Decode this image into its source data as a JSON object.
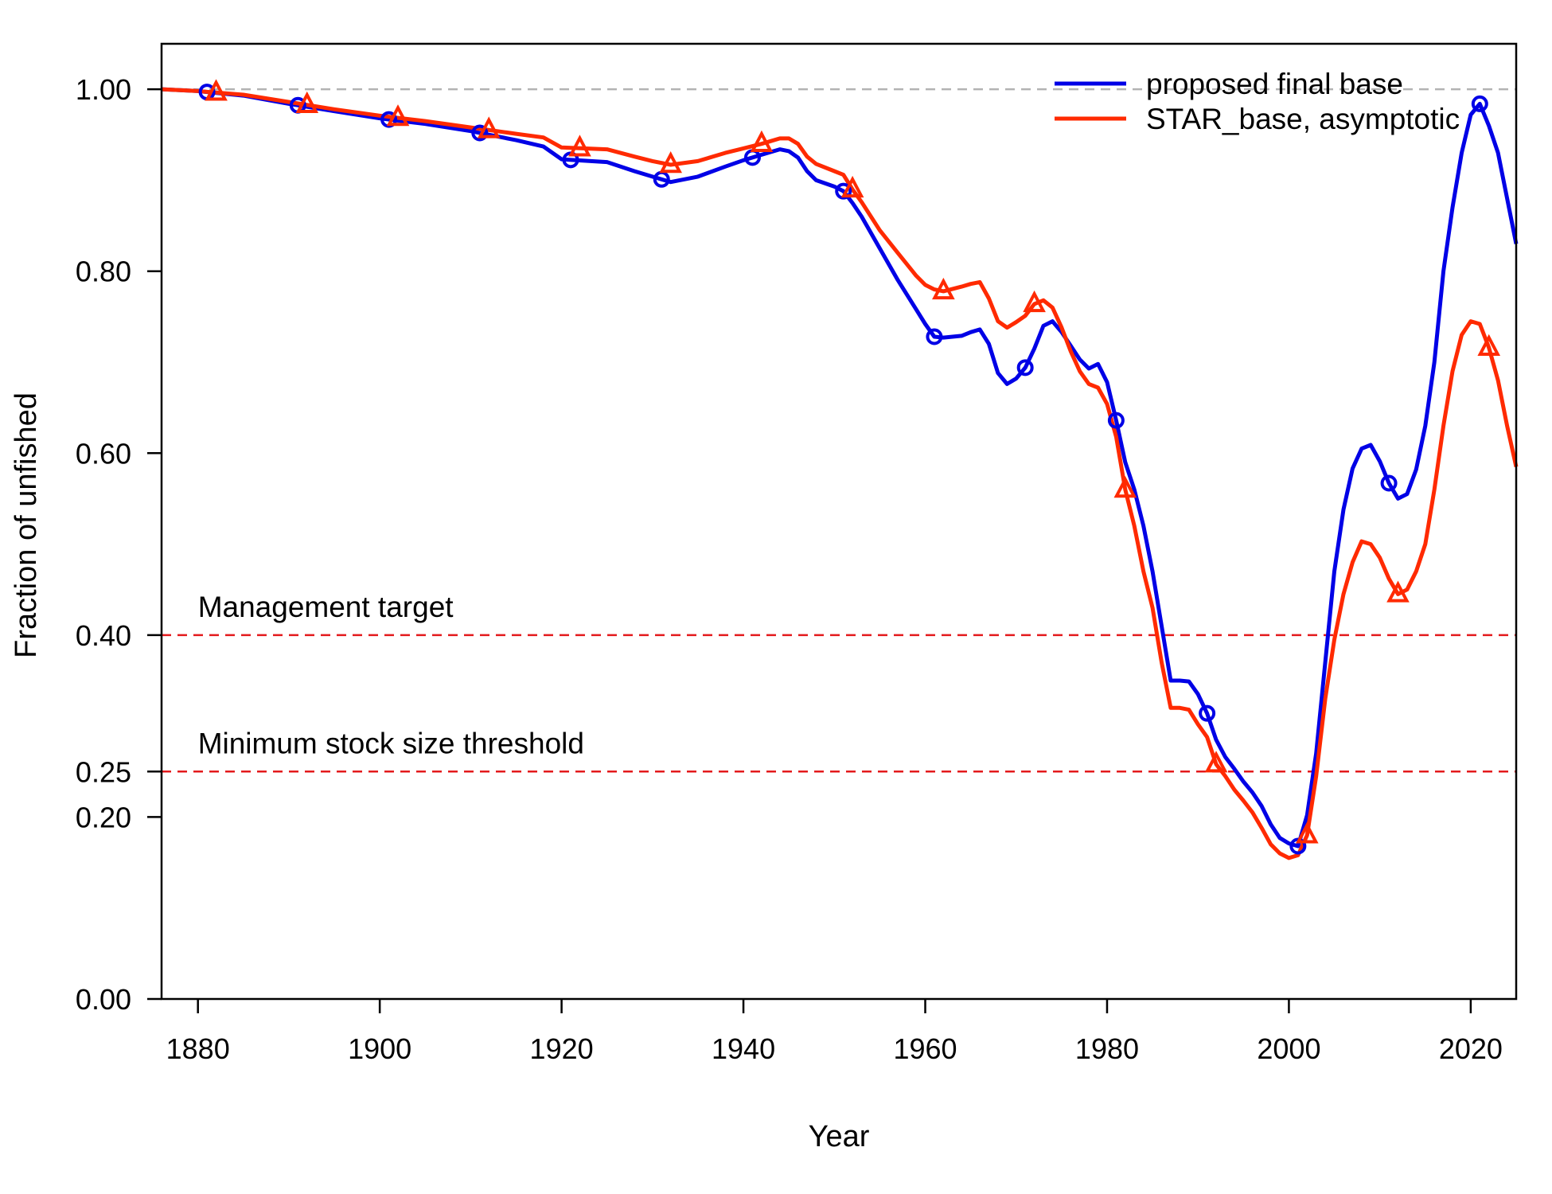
{
  "chart_data": {
    "type": "line",
    "xlabel": "Year",
    "ylabel": "Fraction of unfished",
    "xlim": [
      1876,
      2025
    ],
    "ylim": [
      0,
      1.05
    ],
    "x_ticks": [
      1880,
      1900,
      1920,
      1940,
      1960,
      1980,
      2000,
      2020
    ],
    "y_ticks": [
      0,
      0.2,
      0.25,
      0.4,
      0.6,
      0.8,
      1.0
    ],
    "y_tick_labels": [
      "0.00",
      "0.20",
      "0.25",
      "0.40",
      "0.60",
      "0.80",
      "1.00"
    ],
    "legend_position": "top-right",
    "reference_lines": [
      {
        "y": 1.0,
        "color": "#b3b3b3",
        "style": "dashed",
        "label": ""
      },
      {
        "y": 0.4,
        "color": "#e31a1c",
        "style": "dashed",
        "label": "Management target"
      },
      {
        "y": 0.25,
        "color": "#e31a1c",
        "style": "dashed",
        "label": "Minimum stock size threshold"
      }
    ],
    "series": [
      {
        "name": "proposed final base",
        "color": "#0000e6",
        "marker": "circle",
        "marker_years": [
          1881,
          1891,
          1901,
          1911,
          1921,
          1931,
          1941,
          1951,
          1961,
          1971,
          1981,
          1991,
          2001,
          2011,
          2021
        ],
        "x": [
          1876,
          1880,
          1885,
          1890,
          1895,
          1900,
          1905,
          1910,
          1915,
          1918,
          1920,
          1925,
          1928,
          1930,
          1932,
          1935,
          1938,
          1940,
          1942,
          1944,
          1945,
          1946,
          1947,
          1948,
          1950,
          1951,
          1952,
          1953,
          1955,
          1957,
          1959,
          1960,
          1961,
          1962,
          1964,
          1965,
          1966,
          1967,
          1968,
          1969,
          1970,
          1971,
          1972,
          1973,
          1974,
          1975,
          1976,
          1977,
          1978,
          1979,
          1980,
          1981,
          1982,
          1983,
          1984,
          1985,
          1986,
          1987,
          1988,
          1989,
          1990,
          1991,
          1992,
          1993,
          1994,
          1995,
          1996,
          1997,
          1998,
          1999,
          2000,
          2001,
          2002,
          2003,
          2004,
          2005,
          2006,
          2007,
          2008,
          2009,
          2010,
          2011,
          2012,
          2013,
          2014,
          2015,
          2016,
          2017,
          2018,
          2019,
          2020,
          2021,
          2022,
          2023,
          2024,
          2025
        ],
        "y": [
          1.0,
          0.998,
          0.993,
          0.984,
          0.976,
          0.968,
          0.962,
          0.954,
          0.944,
          0.937,
          0.923,
          0.92,
          0.91,
          0.904,
          0.898,
          0.904,
          0.915,
          0.922,
          0.928,
          0.934,
          0.932,
          0.925,
          0.91,
          0.9,
          0.893,
          0.888,
          0.875,
          0.86,
          0.825,
          0.79,
          0.758,
          0.742,
          0.728,
          0.727,
          0.729,
          0.733,
          0.736,
          0.72,
          0.688,
          0.676,
          0.682,
          0.694,
          0.715,
          0.74,
          0.745,
          0.733,
          0.718,
          0.703,
          0.693,
          0.698,
          0.678,
          0.636,
          0.59,
          0.56,
          0.52,
          0.47,
          0.41,
          0.35,
          0.35,
          0.349,
          0.335,
          0.314,
          0.285,
          0.266,
          0.253,
          0.239,
          0.227,
          0.212,
          0.192,
          0.177,
          0.171,
          0.168,
          0.202,
          0.27,
          0.37,
          0.47,
          0.538,
          0.583,
          0.605,
          0.609,
          0.591,
          0.567,
          0.55,
          0.555,
          0.582,
          0.63,
          0.7,
          0.8,
          0.87,
          0.93,
          0.972,
          0.984,
          0.96,
          0.93,
          0.88,
          0.83
        ]
      },
      {
        "name": "STAR_base, asymptotic",
        "color": "#ff2a00",
        "marker": "triangle",
        "marker_years": [
          1882,
          1892,
          1902,
          1912,
          1922,
          1932,
          1942,
          1952,
          1962,
          1972,
          1982,
          1992,
          2002,
          2012,
          2022
        ],
        "x": [
          1876,
          1880,
          1885,
          1890,
          1895,
          1900,
          1905,
          1910,
          1915,
          1918,
          1920,
          1925,
          1928,
          1930,
          1932,
          1935,
          1938,
          1940,
          1942,
          1944,
          1945,
          1946,
          1947,
          1948,
          1950,
          1951,
          1952,
          1953,
          1955,
          1957,
          1959,
          1960,
          1961,
          1962,
          1964,
          1965,
          1966,
          1967,
          1968,
          1969,
          1970,
          1971,
          1972,
          1973,
          1974,
          1975,
          1976,
          1977,
          1978,
          1979,
          1980,
          1981,
          1982,
          1983,
          1984,
          1985,
          1986,
          1987,
          1988,
          1989,
          1990,
          1991,
          1992,
          1993,
          1994,
          1995,
          1996,
          1997,
          1998,
          1999,
          2000,
          2001,
          2002,
          2003,
          2004,
          2005,
          2006,
          2007,
          2008,
          2009,
          2010,
          2011,
          2012,
          2013,
          2014,
          2015,
          2016,
          2017,
          2018,
          2019,
          2020,
          2021,
          2022,
          2023,
          2024,
          2025
        ],
        "y": [
          1.0,
          0.998,
          0.994,
          0.986,
          0.978,
          0.971,
          0.965,
          0.958,
          0.951,
          0.947,
          0.936,
          0.934,
          0.926,
          0.921,
          0.917,
          0.921,
          0.93,
          0.935,
          0.94,
          0.946,
          0.946,
          0.94,
          0.926,
          0.918,
          0.91,
          0.906,
          0.89,
          0.876,
          0.845,
          0.82,
          0.795,
          0.785,
          0.78,
          0.778,
          0.783,
          0.786,
          0.788,
          0.77,
          0.745,
          0.738,
          0.744,
          0.751,
          0.764,
          0.768,
          0.76,
          0.738,
          0.712,
          0.69,
          0.676,
          0.672,
          0.654,
          0.618,
          0.56,
          0.52,
          0.47,
          0.43,
          0.37,
          0.32,
          0.32,
          0.318,
          0.302,
          0.288,
          0.258,
          0.245,
          0.23,
          0.218,
          0.205,
          0.188,
          0.17,
          0.16,
          0.155,
          0.158,
          0.18,
          0.245,
          0.33,
          0.395,
          0.445,
          0.48,
          0.503,
          0.5,
          0.485,
          0.462,
          0.445,
          0.45,
          0.47,
          0.5,
          0.56,
          0.63,
          0.69,
          0.73,
          0.745,
          0.742,
          0.716,
          0.68,
          0.63,
          0.585
        ]
      }
    ]
  }
}
